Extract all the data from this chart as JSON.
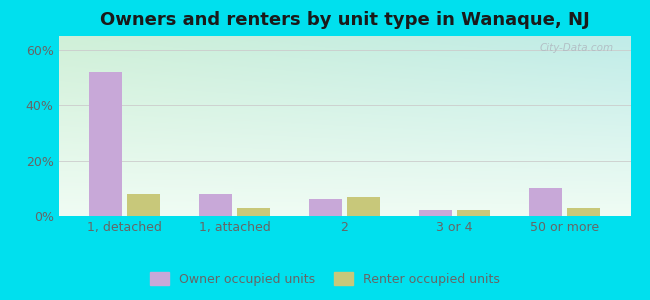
{
  "title": "Owners and renters by unit type in Wanaque, NJ",
  "categories": [
    "1, detached",
    "1, attached",
    "2",
    "3 or 4",
    "50 or more"
  ],
  "owner_values": [
    52,
    8,
    6,
    2,
    10
  ],
  "renter_values": [
    8,
    3,
    7,
    2,
    3
  ],
  "owner_color": "#c8a8d8",
  "renter_color": "#c8c87a",
  "background_outer": "#00e0ee",
  "background_inner_top_left": "#d0f0d8",
  "background_inner_top_right": "#c8f0f0",
  "background_inner_bottom": "#e8faf0",
  "yticks": [
    0,
    20,
    40,
    60
  ],
  "ylim": [
    0,
    65
  ],
  "title_fontsize": 13,
  "tick_fontsize": 9,
  "legend_labels": [
    "Owner occupied units",
    "Renter occupied units"
  ],
  "watermark": "City-Data.com",
  "grid_color": "#cccccc",
  "tick_color": "#666666"
}
